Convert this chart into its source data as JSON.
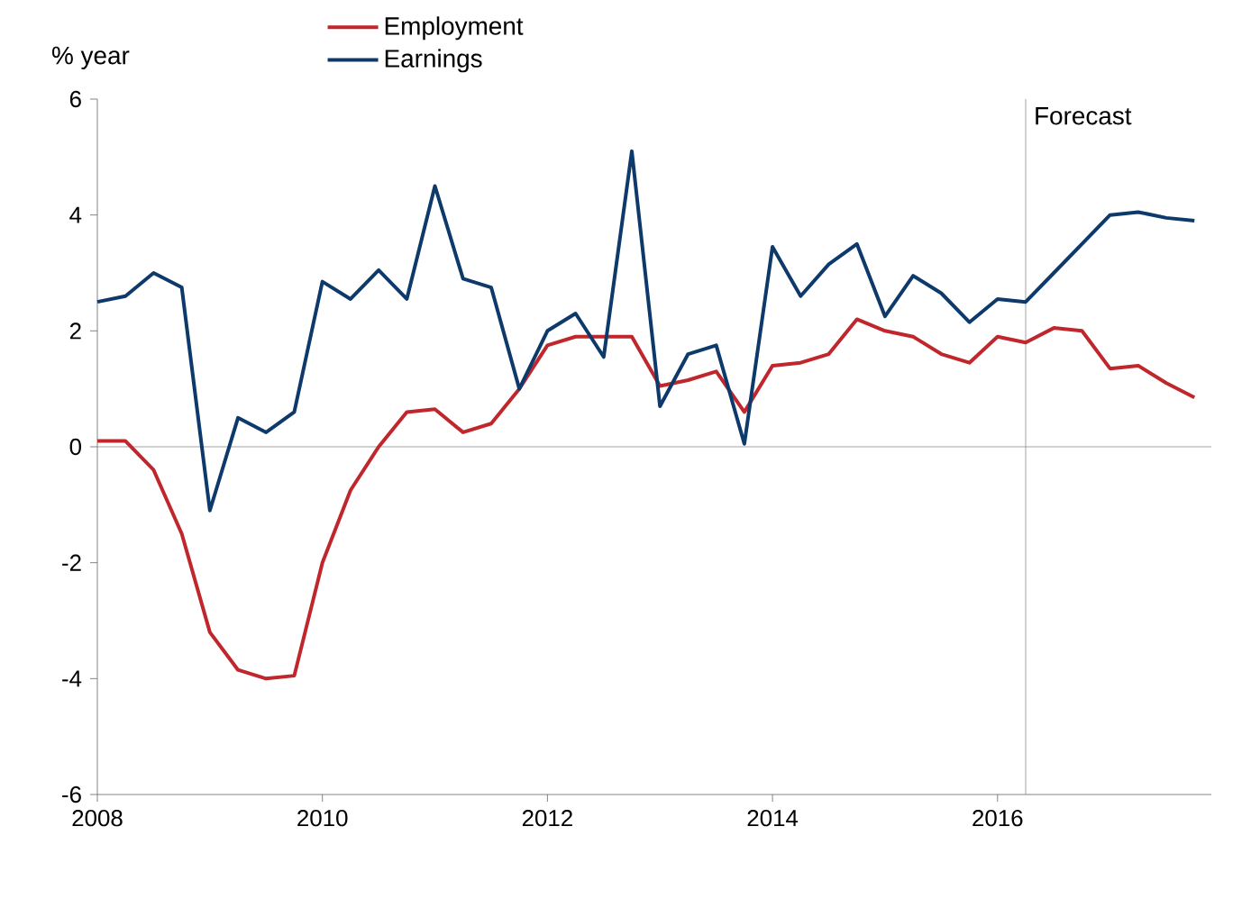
{
  "chart_data": {
    "type": "line",
    "ylabel": "% year",
    "x": [
      2008,
      2008.25,
      2008.5,
      2008.75,
      2009,
      2009.25,
      2009.5,
      2009.75,
      2010,
      2010.25,
      2010.5,
      2010.75,
      2011,
      2011.25,
      2011.5,
      2011.75,
      2012,
      2012.25,
      2012.5,
      2012.75,
      2013,
      2013.25,
      2013.5,
      2013.75,
      2014,
      2014.25,
      2014.5,
      2014.75,
      2015,
      2015.25,
      2015.5,
      2015.75,
      2016,
      2016.25,
      2016.5,
      2016.75,
      2017,
      2017.25,
      2017.5,
      2017.75
    ],
    "series": [
      {
        "name": "Employment",
        "color": "#c0272d",
        "values": [
          0.1,
          0.1,
          -0.4,
          -1.5,
          -3.2,
          -3.85,
          -4.0,
          -3.95,
          -2.0,
          -0.75,
          0.0,
          0.6,
          0.65,
          0.25,
          0.4,
          1.0,
          1.75,
          1.9,
          1.9,
          1.9,
          1.05,
          1.15,
          1.3,
          0.6,
          1.4,
          1.45,
          1.6,
          2.2,
          2.0,
          1.9,
          1.6,
          1.45,
          1.9,
          1.8,
          2.05,
          2.0,
          1.35,
          1.4,
          1.1,
          0.85
        ]
      },
      {
        "name": "Earnings",
        "color": "#0d3a6b",
        "values": [
          2.5,
          2.6,
          3.0,
          2.75,
          -1.1,
          0.5,
          0.25,
          0.6,
          2.85,
          2.55,
          3.05,
          2.55,
          4.5,
          2.9,
          2.75,
          1.0,
          2.0,
          2.3,
          1.55,
          5.1,
          0.7,
          1.6,
          1.75,
          0.05,
          3.45,
          2.6,
          3.15,
          3.5,
          2.25,
          2.95,
          2.65,
          2.15,
          2.55,
          2.5,
          3.0,
          3.5,
          4.0,
          4.05,
          3.95,
          3.9
        ]
      }
    ],
    "xlim": [
      2008,
      2017.9
    ],
    "ylim": [
      -6,
      6
    ],
    "xticks": [
      2008,
      2010,
      2012,
      2014,
      2016
    ],
    "yticks": [
      -6,
      -4,
      -2,
      0,
      2,
      4,
      6
    ],
    "ref_lines": [
      {
        "axis": "y",
        "value": 0,
        "color": "#8c8c8c"
      },
      {
        "axis": "x",
        "value": 2016.25,
        "label": "Forecast",
        "color": "#8c8c8c"
      }
    ],
    "marker": "none",
    "line_style": "solid",
    "legend": "top"
  }
}
